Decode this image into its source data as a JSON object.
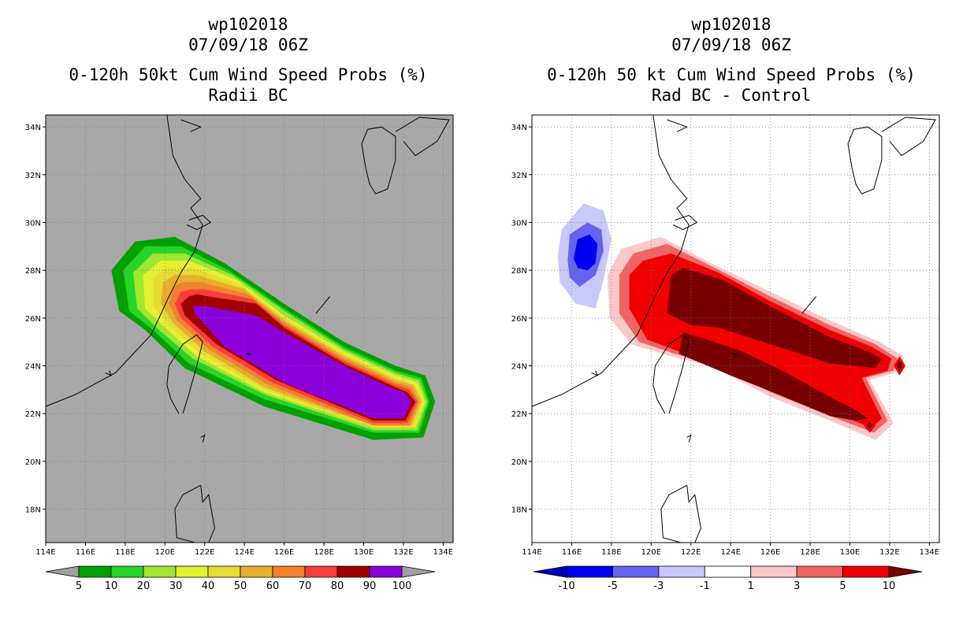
{
  "chart_data": [
    {
      "type": "heatmap",
      "title_lines": [
        "wp102018",
        "07/09/18 06Z",
        "0-120h 50kt Cum Wind Speed Probs (%)",
        "Radii BC"
      ],
      "xlim": [
        114,
        134.5
      ],
      "ylim": [
        16.6,
        34.5
      ],
      "x_ticks": [
        114,
        116,
        118,
        120,
        122,
        124,
        126,
        128,
        130,
        132,
        134
      ],
      "x_tick_labels": [
        "114E",
        "116E",
        "118E",
        "120E",
        "122E",
        "124E",
        "126E",
        "128E",
        "130E",
        "132E",
        "134E"
      ],
      "y_ticks": [
        18,
        20,
        22,
        24,
        26,
        28,
        30,
        32,
        34
      ],
      "y_tick_labels": [
        "18N",
        "20N",
        "22N",
        "24N",
        "26N",
        "28N",
        "30N",
        "32N",
        "34N"
      ],
      "background_color": "#a8a8a8",
      "colorbar": {
        "labels": [
          "5",
          "10",
          "20",
          "30",
          "40",
          "50",
          "60",
          "70",
          "80",
          "90",
          "100"
        ],
        "colors": [
          "#a0a0a0",
          "#00a000",
          "#28d428",
          "#a0e632",
          "#e6f032",
          "#e6dc32",
          "#e6af2d",
          "#f0822d",
          "#fa3c3c",
          "#a00000",
          "#8c00dc",
          "#a0a0a0"
        ]
      },
      "contours": [
        {
          "level": 5,
          "color": "#00a000"
        },
        {
          "level": 10,
          "color": "#28d428"
        },
        {
          "level": 20,
          "color": "#a0e632"
        },
        {
          "level": 30,
          "color": "#e6f032"
        },
        {
          "level": 40,
          "color": "#e6dc32"
        },
        {
          "level": 50,
          "color": "#e6af2d"
        },
        {
          "level": 60,
          "color": "#f0822d"
        },
        {
          "level": 70,
          "color": "#fa3c3c"
        },
        {
          "level": 80,
          "color": "#a00000"
        },
        {
          "level": 90,
          "color": "#8c00dc"
        }
      ]
    },
    {
      "type": "heatmap",
      "title_lines": [
        "wp102018",
        "07/09/18 06Z",
        "0-120h 50 kt Cum Wind Speed Probs (%)",
        "Rad BC - Control"
      ],
      "xlim": [
        114,
        134.5
      ],
      "ylim": [
        16.6,
        34.5
      ],
      "x_ticks": [
        114,
        116,
        118,
        120,
        122,
        124,
        126,
        128,
        130,
        132,
        134
      ],
      "x_tick_labels": [
        "114E",
        "116E",
        "118E",
        "120E",
        "122E",
        "124E",
        "126E",
        "128E",
        "130E",
        "132E",
        "134E"
      ],
      "y_ticks": [
        18,
        20,
        22,
        24,
        26,
        28,
        30,
        32,
        34
      ],
      "y_tick_labels": [
        "18N",
        "20N",
        "22N",
        "24N",
        "26N",
        "28N",
        "30N",
        "32N",
        "34N"
      ],
      "background_color": "#ffffff",
      "colorbar": {
        "labels": [
          "-10",
          "-5",
          "-3",
          "-1",
          "1",
          "3",
          "5",
          "10"
        ],
        "colors": [
          "#0000b4",
          "#0000f0",
          "#6464f0",
          "#c8c8fa",
          "#ffffff",
          "#fac8c8",
          "#f06464",
          "#f00000",
          "#780000"
        ]
      },
      "contours": [
        {
          "level": 1,
          "color": "#fac8c8"
        },
        {
          "level": 3,
          "color": "#f06464"
        },
        {
          "level": 5,
          "color": "#f00000"
        },
        {
          "level": 10,
          "color": "#780000"
        },
        {
          "level": -1,
          "color": "#c8c8fa"
        },
        {
          "level": -3,
          "color": "#6464f0"
        },
        {
          "level": -5,
          "color": "#0000f0"
        }
      ]
    }
  ]
}
